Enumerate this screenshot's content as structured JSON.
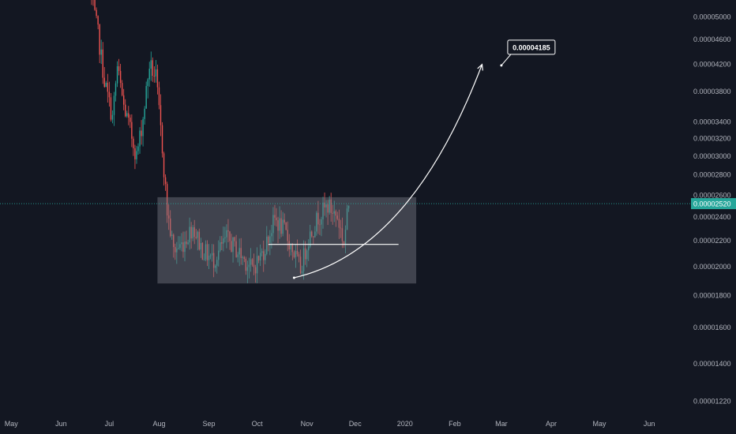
{
  "colors": {
    "background": "#131722",
    "up": "#26a69a",
    "down": "#ef5350",
    "tick_text": "#b2b5be",
    "last_price": "#26a69a",
    "zone_fill": "#787b86",
    "drawing": "#ffffff"
  },
  "chart_data": {
    "type": "candlestick",
    "title": "",
    "xlabel": "",
    "ylabel": "",
    "grid": false,
    "y_scale": "log",
    "ylim": [
      1.16e-05,
      5.32e-05
    ],
    "x_range": [
      "2019-04-24",
      "2020-06-27"
    ],
    "x_ticks": [
      {
        "label": "May",
        "date": "2019-05-01"
      },
      {
        "label": "Jun",
        "date": "2019-06-01"
      },
      {
        "label": "Jul",
        "date": "2019-07-01"
      },
      {
        "label": "Aug",
        "date": "2019-08-01"
      },
      {
        "label": "Sep",
        "date": "2019-09-01"
      },
      {
        "label": "Oct",
        "date": "2019-10-01"
      },
      {
        "label": "Nov",
        "date": "2019-11-01"
      },
      {
        "label": "Dec",
        "date": "2019-12-01"
      },
      {
        "label": "2020",
        "date": "2020-01-01"
      },
      {
        "label": "Feb",
        "date": "2020-02-01"
      },
      {
        "label": "Mar",
        "date": "2020-03-01"
      },
      {
        "label": "Apr",
        "date": "2020-04-01"
      },
      {
        "label": "May",
        "date": "2020-05-01"
      },
      {
        "label": "Jun",
        "date": "2020-06-01"
      }
    ],
    "y_ticks": [
      {
        "label": "0.00005000",
        "value": 5e-05
      },
      {
        "label": "0.00004600",
        "value": 4.6e-05
      },
      {
        "label": "0.00004200",
        "value": 4.2e-05
      },
      {
        "label": "0.00003800",
        "value": 3.8e-05
      },
      {
        "label": "0.00003400",
        "value": 3.4e-05
      },
      {
        "label": "0.00003200",
        "value": 3.2e-05
      },
      {
        "label": "0.00003000",
        "value": 3e-05
      },
      {
        "label": "0.00002800",
        "value": 2.8e-05
      },
      {
        "label": "0.00002600",
        "value": 2.6e-05
      },
      {
        "label": "0.00002400",
        "value": 2.4e-05
      },
      {
        "label": "0.00002200",
        "value": 2.2e-05
      },
      {
        "label": "0.00002000",
        "value": 2e-05
      },
      {
        "label": "0.00001800",
        "value": 1.8e-05
      },
      {
        "label": "0.00001600",
        "value": 1.6e-05
      },
      {
        "label": "0.00001400",
        "value": 1.4e-05
      },
      {
        "label": "0.00001220",
        "value": 1.22e-05
      }
    ],
    "last_price": {
      "label": "0.00002520",
      "value": 2.52e-05
    },
    "anchors": [
      {
        "date": "2019-06-20",
        "price": 5.32e-05
      },
      {
        "date": "2019-06-24",
        "price": 4.7e-05
      },
      {
        "date": "2019-06-28",
        "price": 3.95e-05
      },
      {
        "date": "2019-07-03",
        "price": 3.45e-05
      },
      {
        "date": "2019-07-06",
        "price": 4.15e-05
      },
      {
        "date": "2019-07-10",
        "price": 3.6e-05
      },
      {
        "date": "2019-07-14",
        "price": 3.3e-05
      },
      {
        "date": "2019-07-18",
        "price": 3e-05
      },
      {
        "date": "2019-07-22",
        "price": 3.45e-05
      },
      {
        "date": "2019-07-26",
        "price": 4.2e-05
      },
      {
        "date": "2019-07-30",
        "price": 4e-05
      },
      {
        "date": "2019-08-03",
        "price": 3.1e-05
      },
      {
        "date": "2019-08-06",
        "price": 2.45e-05
      },
      {
        "date": "2019-08-10",
        "price": 2.12e-05
      },
      {
        "date": "2019-08-16",
        "price": 2.18e-05
      },
      {
        "date": "2019-08-22",
        "price": 2.32e-05
      },
      {
        "date": "2019-08-28",
        "price": 2.12e-05
      },
      {
        "date": "2019-09-04",
        "price": 2.05e-05
      },
      {
        "date": "2019-09-12",
        "price": 2.22e-05
      },
      {
        "date": "2019-09-20",
        "price": 2.1e-05
      },
      {
        "date": "2019-09-28",
        "price": 1.98e-05
      },
      {
        "date": "2019-10-05",
        "price": 2.12e-05
      },
      {
        "date": "2019-10-12",
        "price": 2.38e-05
      },
      {
        "date": "2019-10-18",
        "price": 2.28e-05
      },
      {
        "date": "2019-10-24",
        "price": 2.1e-05
      },
      {
        "date": "2019-10-28",
        "price": 1.98e-05
      },
      {
        "date": "2019-11-02",
        "price": 2.22e-05
      },
      {
        "date": "2019-11-08",
        "price": 2.4e-05
      },
      {
        "date": "2019-11-14",
        "price": 2.5e-05
      },
      {
        "date": "2019-11-20",
        "price": 2.4e-05
      },
      {
        "date": "2019-11-24",
        "price": 2.18e-05
      },
      {
        "date": "2019-11-27",
        "price": 2.52e-05
      }
    ],
    "annotations": {
      "range_box": {
        "start": "2019-07-31",
        "end": "2020-01-08",
        "top": 2.58e-05,
        "bottom": 1.88e-05
      },
      "support_line": {
        "start": "2019-10-08",
        "end": "2019-12-28",
        "price": 2.17e-05
      },
      "projection_curve": {
        "start": {
          "date": "2019-10-24",
          "price": 1.92e-05
        },
        "control": {
          "date": "2020-01-05",
          "price": 2.12e-05
        },
        "end": {
          "date": "2020-02-18",
          "price": 4.2e-05
        }
      },
      "target_callout": {
        "label": "0.00004185",
        "value": 4.185e-05,
        "date": "2020-03-01"
      }
    }
  }
}
